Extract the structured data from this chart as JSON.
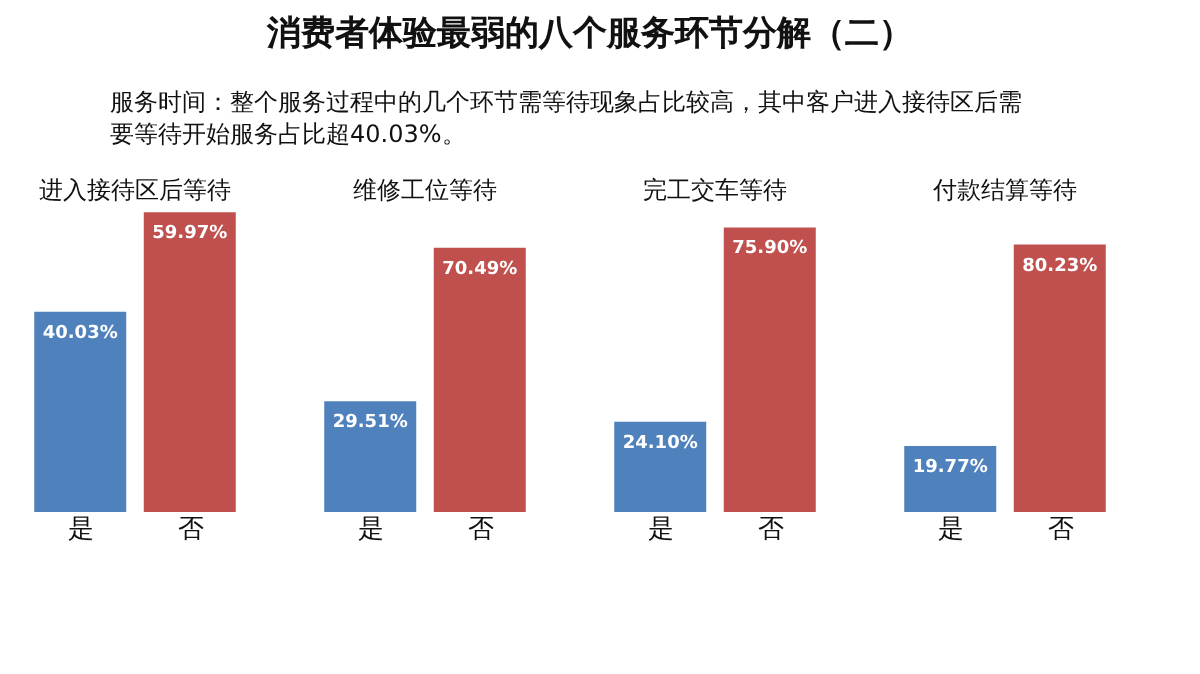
{
  "chart_data": [
    {
      "type": "other",
      "title": "消费者体验最弱的八个服务环节分解（二）",
      "subtitle": "服务时间：整个服务过程中的几个环节需等待现象占比较高，其中客户进入接待区后需要等待开始服务占比超40.03%。"
    },
    {
      "type": "bar",
      "title": "进入接待区后等待",
      "categories": [
        "是",
        "否"
      ],
      "values": [
        40.03,
        59.97
      ],
      "colors": [
        "#4f81bd",
        "#c0504d"
      ],
      "value_labels": [
        "40.03%",
        "59.97%"
      ],
      "tick_labels": "x"
    },
    {
      "type": "bar",
      "title": "维修工位等待",
      "categories": [
        "是",
        "否"
      ],
      "values": [
        29.51,
        70.49
      ],
      "colors": [
        "#4f81bd",
        "#c0504d"
      ],
      "value_labels": [
        "29.51%",
        "70.49%"
      ],
      "tick_labels": "x"
    },
    {
      "type": "bar",
      "title": "完工交车等待",
      "categories": [
        "是",
        "否"
      ],
      "values": [
        24.1,
        75.9
      ],
      "colors": [
        "#4f81bd",
        "#c0504d"
      ],
      "value_labels": [
        "24.10%",
        "75.90%"
      ],
      "tick_labels": "x"
    },
    {
      "type": "bar",
      "title": "付款结算等待",
      "categories": [
        "是",
        "否"
      ],
      "values": [
        19.77,
        80.23
      ],
      "colors": [
        "#4f81bd",
        "#c0504d"
      ],
      "value_labels": [
        "19.77%",
        "80.23%"
      ],
      "tick_labels": "x"
    }
  ]
}
